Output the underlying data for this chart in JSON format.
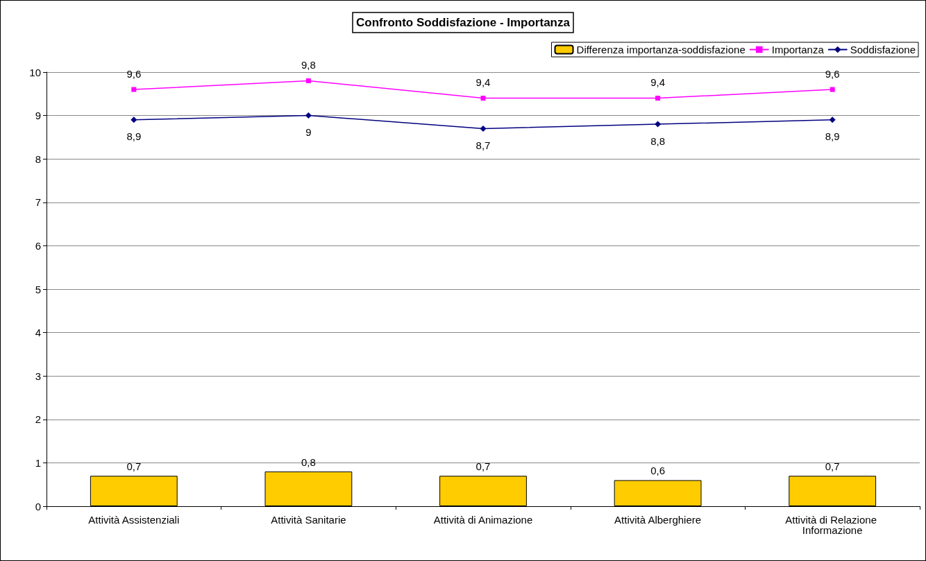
{
  "chart_data": {
    "type": "bar",
    "title": "Confronto Soddisfazione - Importanza",
    "categories": [
      "Attività Assistenziali",
      "Attività Sanitarie",
      "Attività di Animazione",
      "Attività Alberghiere",
      "Attività di Relazione Informazione"
    ],
    "series": [
      {
        "name": "Differenza importanza-soddisfazione",
        "color": "#ffcc00",
        "values": [
          0.7,
          0.8,
          0.7,
          0.6,
          0.7
        ],
        "value_labels": [
          "0,7",
          "0,8",
          "0,7",
          "0,6",
          "0,7"
        ]
      },
      {
        "name": "Importanza",
        "type": "line",
        "color": "#ff00ff",
        "marker": "square",
        "values": [
          9.6,
          9.8,
          9.4,
          9.4,
          9.6
        ],
        "value_labels": [
          "9,6",
          "9,8",
          "9,4",
          "9,4",
          "9,6"
        ]
      },
      {
        "name": "Soddisfazione",
        "type": "line",
        "color": "#000080",
        "marker": "diamond",
        "values": [
          8.9,
          9.0,
          8.7,
          8.8,
          8.9
        ],
        "value_labels": [
          "8,9",
          "9",
          "8,7",
          "8,8",
          "8,9"
        ]
      }
    ],
    "ylim": [
      0,
      10
    ],
    "yticks": [
      0,
      1,
      2,
      3,
      4,
      5,
      6,
      7,
      8,
      9,
      10
    ],
    "grid": "y",
    "legend": "top right",
    "line_style": "solid"
  }
}
